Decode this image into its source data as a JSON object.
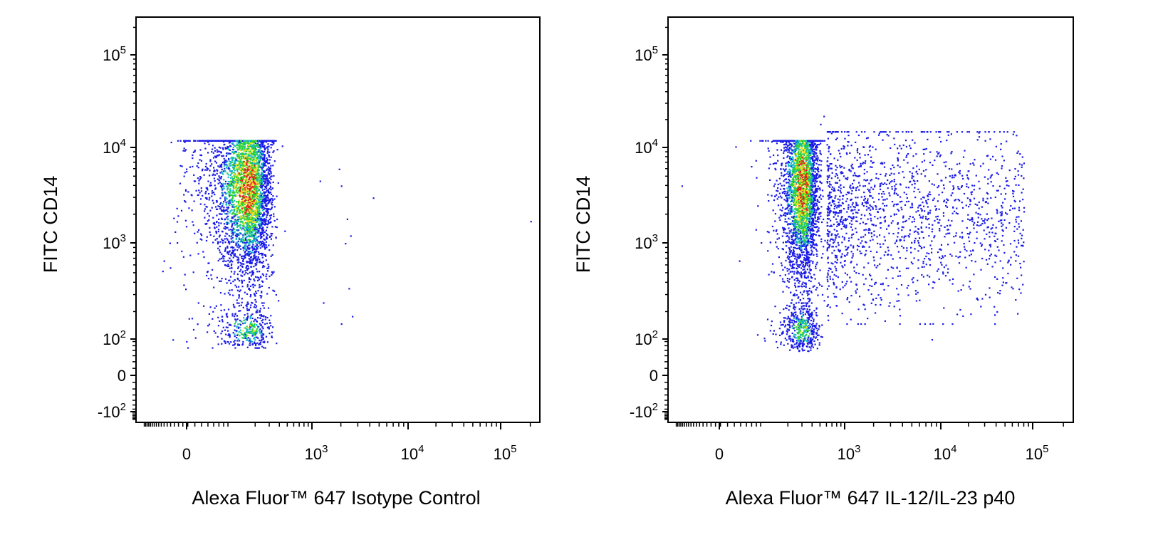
{
  "colors": {
    "background": "#ffffff",
    "axis": "#000000",
    "density_low": "#1a1ae6",
    "density_mid_low": "#12b9c8",
    "density_mid": "#2bd22b",
    "density_mid_high": "#f0e21e",
    "density_high": "#e61b1b"
  },
  "chart_data": [
    {
      "type": "scatter",
      "subtype": "flow-cytometry density dot plot",
      "title": "",
      "xlabel": "Alexa Fluor™ 647 Isotype Control",
      "ylabel": "FITC CD14",
      "x_scale": "biexponential",
      "y_scale": "biexponential",
      "xlim": [
        -200,
        200000
      ],
      "ylim": [
        -200,
        250000
      ],
      "x_ticks": [
        {
          "value": 0,
          "base": "0",
          "exp": ""
        },
        {
          "value": 1000,
          "base": "10",
          "exp": "3"
        },
        {
          "value": 10000,
          "base": "10",
          "exp": "4"
        },
        {
          "value": 100000,
          "base": "10",
          "exp": "5"
        }
      ],
      "y_ticks": [
        {
          "value": -100,
          "base": "-10",
          "exp": "2"
        },
        {
          "value": 0,
          "base": "0",
          "exp": ""
        },
        {
          "value": 100,
          "base": "10",
          "exp": "2"
        },
        {
          "value": 1000,
          "base": "10",
          "exp": "3"
        },
        {
          "value": 10000,
          "base": "10",
          "exp": "4"
        },
        {
          "value": 100000,
          "base": "10",
          "exp": "5"
        }
      ],
      "grid": false,
      "legend": "none",
      "populations": [
        {
          "name": "",
          "x_center": 160,
          "x_spread": 70,
          "y_center": 2500,
          "y_range": [
            80,
            12000
          ],
          "relative_size": 0.92,
          "peak_density_at_y": 4000
        },
        {
          "name": "",
          "x_center": 160,
          "x_spread": 70,
          "y_center": 130,
          "y_range": [
            70,
            250
          ],
          "relative_size": 0.08,
          "peak_density_at_y": 130
        }
      ],
      "outliers": [
        {
          "x": 1200,
          "y": 4500
        },
        {
          "x": 1900,
          "y": 6000
        },
        {
          "x": 2000,
          "y": 4000
        },
        {
          "x": 2300,
          "y": 1800
        },
        {
          "x": 2500,
          "y": 1200
        },
        {
          "x": 4300,
          "y": 3000
        },
        {
          "x": 2400,
          "y": 350
        },
        {
          "x": 2000,
          "y": 150
        },
        {
          "x": 2600,
          "y": 180
        },
        {
          "x": 1300,
          "y": 250
        },
        {
          "x": 2200,
          "y": 1000
        },
        {
          "x": 200000,
          "y": 1700
        }
      ]
    },
    {
      "type": "scatter",
      "subtype": "flow-cytometry density dot plot",
      "title": "",
      "xlabel": "Alexa Fluor™ 647 IL-12/IL-23 p40",
      "ylabel": "FITC CD14",
      "x_scale": "biexponential",
      "y_scale": "biexponential",
      "xlim": [
        -200,
        200000
      ],
      "ylim": [
        -200,
        250000
      ],
      "x_ticks": [
        {
          "value": 0,
          "base": "0",
          "exp": ""
        },
        {
          "value": 1000,
          "base": "10",
          "exp": "3"
        },
        {
          "value": 10000,
          "base": "10",
          "exp": "4"
        },
        {
          "value": 100000,
          "base": "10",
          "exp": "5"
        }
      ],
      "y_ticks": [
        {
          "value": -100,
          "base": "-10",
          "exp": "2"
        },
        {
          "value": 0,
          "base": "0",
          "exp": ""
        },
        {
          "value": 100,
          "base": "10",
          "exp": "2"
        },
        {
          "value": 1000,
          "base": "10",
          "exp": "3"
        },
        {
          "value": 10000,
          "base": "10",
          "exp": "4"
        },
        {
          "value": 100000,
          "base": "10",
          "exp": "5"
        }
      ],
      "grid": false,
      "legend": "none",
      "populations": [
        {
          "name": "",
          "x_center": 300,
          "x_spread": 80,
          "y_center": 2500,
          "y_range": [
            80,
            12000
          ],
          "relative_size": 0.62,
          "peak_density_at_y": 4000
        },
        {
          "name": "",
          "x_center": 300,
          "x_spread": 80,
          "y_center": 130,
          "y_range": [
            60,
            250
          ],
          "relative_size": 0.08,
          "peak_density_at_y": 130
        },
        {
          "name": "",
          "x_center": 4000,
          "x_range": [
            600,
            80000
          ],
          "y_center": 1500,
          "y_range": [
            150,
            15000
          ],
          "relative_size": 0.3,
          "peak_density_at_y": 2000
        }
      ],
      "outliers": [
        {
          "x": -150,
          "y": 4000
        },
        {
          "x": 550,
          "y": 22000
        },
        {
          "x": 500,
          "y": 18000
        },
        {
          "x": 30000,
          "y": 12000
        },
        {
          "x": 70000,
          "y": 1500
        },
        {
          "x": 60000,
          "y": 350
        },
        {
          "x": 50000,
          "y": 400
        },
        {
          "x": 40000,
          "y": 5500
        },
        {
          "x": 8000,
          "y": 100
        }
      ]
    }
  ]
}
